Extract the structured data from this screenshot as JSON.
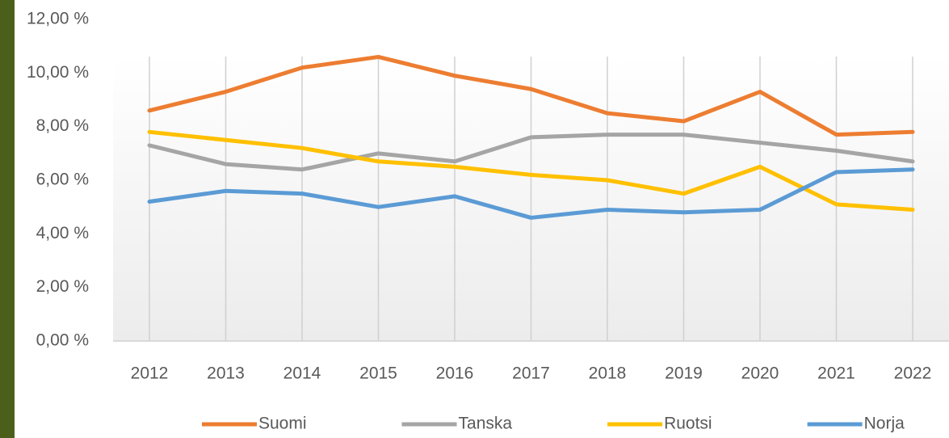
{
  "chart_data": {
    "type": "line",
    "x": [
      2012,
      2013,
      2014,
      2015,
      2016,
      2017,
      2018,
      2019,
      2020,
      2021,
      2022
    ],
    "series": [
      {
        "name": "Suomi",
        "color": "#ed7d31",
        "values": [
          8.6,
          9.3,
          10.2,
          10.6,
          9.9,
          9.4,
          8.5,
          8.2,
          9.3,
          7.7,
          7.8
        ]
      },
      {
        "name": "Tanska",
        "color": "#a5a5a5",
        "values": [
          7.3,
          6.6,
          6.4,
          7.0,
          6.7,
          7.6,
          7.7,
          7.7,
          7.4,
          7.1,
          6.7
        ]
      },
      {
        "name": "Ruotsi",
        "color": "#ffc000",
        "values": [
          7.8,
          7.5,
          7.2,
          6.7,
          6.5,
          6.2,
          6.0,
          5.5,
          6.5,
          5.1,
          4.9
        ]
      },
      {
        "name": "Norja",
        "color": "#5b9bd5",
        "values": [
          5.2,
          5.6,
          5.5,
          5.0,
          5.4,
          4.6,
          4.9,
          4.8,
          4.9,
          6.3,
          6.4
        ]
      }
    ],
    "ylim": [
      0,
      12
    ],
    "yticks": [
      {
        "value": 0,
        "label": "0,00 %"
      },
      {
        "value": 2,
        "label": "2,00 %"
      },
      {
        "value": 4,
        "label": "4,00 %"
      },
      {
        "value": 6,
        "label": "6,00 %"
      },
      {
        "value": 8,
        "label": "8,00 %"
      },
      {
        "value": 10,
        "label": "10,00 %"
      },
      {
        "value": 12,
        "label": "12,00 %"
      }
    ],
    "grid": true,
    "legend": "bottom"
  }
}
